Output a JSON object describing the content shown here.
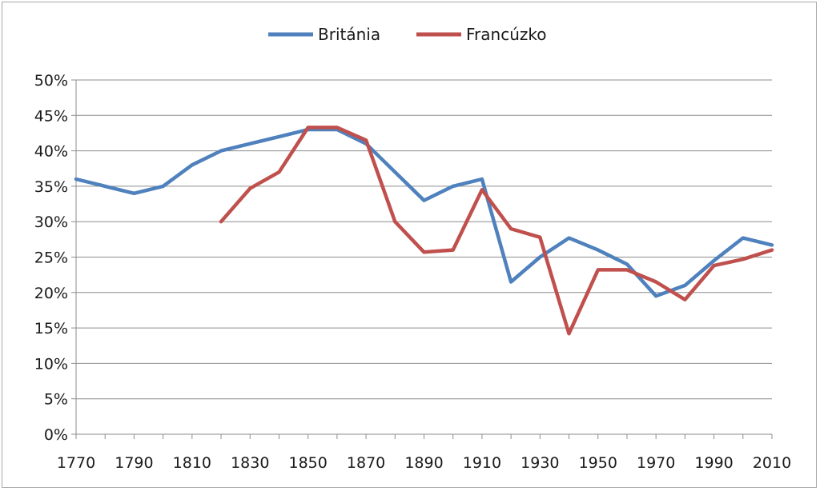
{
  "chart_data": {
    "type": "line",
    "title": "",
    "xlabel": "",
    "ylabel": "",
    "xlim": [
      1770,
      2010
    ],
    "ylim": [
      0,
      50
    ],
    "x_ticks": [
      "1770",
      "1790",
      "1810",
      "1830",
      "1850",
      "1870",
      "1890",
      "1910",
      "1930",
      "1950",
      "1970",
      "1990",
      "2010"
    ],
    "y_ticks": [
      "0%",
      "5%",
      "10%",
      "15%",
      "20%",
      "25%",
      "30%",
      "35%",
      "40%",
      "45%",
      "50%"
    ],
    "grid": true,
    "legend_position": "top",
    "series": [
      {
        "name": "Británia",
        "color": "#4f81bd",
        "x": [
          1770,
          1780,
          1790,
          1800,
          1810,
          1820,
          1830,
          1840,
          1850,
          1860,
          1870,
          1880,
          1890,
          1900,
          1910,
          1920,
          1930,
          1940,
          1950,
          1960,
          1970,
          1980,
          1990,
          2000,
          2010
        ],
        "values": [
          36,
          35,
          34,
          35,
          38,
          40,
          41,
          42,
          43,
          43,
          41,
          37,
          33,
          35,
          36,
          21.5,
          25,
          27.7,
          26,
          24,
          19.5,
          21,
          24.5,
          27.7,
          26.7
        ]
      },
      {
        "name": "Francúzko",
        "color": "#c0504d",
        "x": [
          1820,
          1830,
          1840,
          1850,
          1860,
          1870,
          1880,
          1890,
          1900,
          1910,
          1920,
          1930,
          1940,
          1950,
          1960,
          1970,
          1980,
          1990,
          2000,
          2010
        ],
        "values": [
          30,
          34.7,
          37,
          43.3,
          43.3,
          41.5,
          30,
          25.7,
          26,
          34.5,
          29,
          27.8,
          14.2,
          23.2,
          23.2,
          21.5,
          19,
          23.8,
          24.7,
          26
        ]
      }
    ]
  }
}
